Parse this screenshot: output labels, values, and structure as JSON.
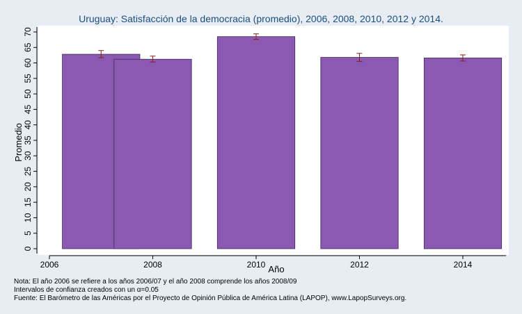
{
  "chart_data": {
    "type": "bar",
    "title": "Uruguay: Satisfacción de la democracia (promedio), 2006, 2008, 2010, 2012 y 2014.",
    "xlabel": "Año",
    "ylabel": "Promedio",
    "xlim": [
      2006,
      2015
    ],
    "ylim": [
      0,
      70
    ],
    "yticks": [
      0,
      5,
      10,
      15,
      20,
      25,
      30,
      35,
      40,
      45,
      50,
      55,
      60,
      65,
      70
    ],
    "xticks": [
      2006,
      2008,
      2010,
      2012,
      2014
    ],
    "bar_color": "#8b58b2",
    "error_color": "#8b1a1a",
    "bars": [
      {
        "x_start": 2006.25,
        "x_end": 2007.75,
        "value": 62.8,
        "ci_low": 61.7,
        "ci_high": 64.0
      },
      {
        "x_start": 2007.25,
        "x_end": 2008.75,
        "value": 61.2,
        "ci_low": 60.3,
        "ci_high": 62.2
      },
      {
        "x_start": 2009.25,
        "x_end": 2010.75,
        "value": 68.5,
        "ci_low": 67.6,
        "ci_high": 69.4
      },
      {
        "x_start": 2011.25,
        "x_end": 2012.75,
        "value": 61.8,
        "ci_low": 60.5,
        "ci_high": 63.1
      },
      {
        "x_start": 2013.25,
        "x_end": 2014.75,
        "value": 61.6,
        "ci_low": 60.6,
        "ci_high": 62.6
      }
    ],
    "grid": false,
    "legend": "none"
  },
  "notes": [
    "Nota: El año 2006 se refiere a los años 2006/07 y el año 2008 comprende los años 2008/09",
    "Intervalos de confianza creados con un α=0.05",
    "Fuente: El Barómetro de las Américas por el Proyecto de Opinión Pública de América Latina (LAPOP), www.LapopSurveys.org."
  ]
}
